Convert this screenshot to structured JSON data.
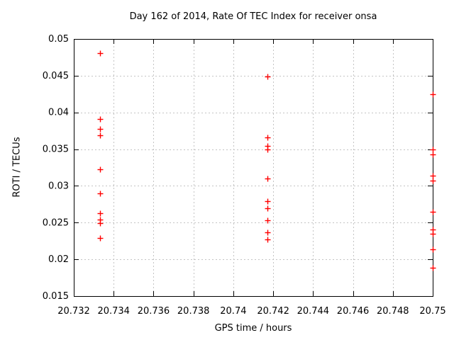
{
  "chart_data": {
    "type": "scatter",
    "title": "Day 162 of 2014, Rate Of TEC Index for receiver onsa",
    "xlabel": "GPS time / hours",
    "ylabel": "ROTI / TECUs",
    "xlim": [
      20.732,
      20.75
    ],
    "ylim": [
      0.015,
      0.05
    ],
    "xticks": [
      20.732,
      20.734,
      20.736,
      20.738,
      20.74,
      20.742,
      20.744,
      20.746,
      20.748,
      20.75
    ],
    "xtick_labels": [
      "20.732",
      "20.734",
      "20.736",
      "20.738",
      "20.74",
      "20.742",
      "20.744",
      "20.746",
      "20.748",
      "20.75"
    ],
    "yticks": [
      0.015,
      0.02,
      0.025,
      0.03,
      0.035,
      0.04,
      0.045,
      0.05
    ],
    "ytick_labels": [
      "0.015",
      "0.02",
      "0.025",
      "0.03",
      "0.035",
      "0.04",
      "0.045",
      "0.05"
    ],
    "grid": true,
    "legend_position": "none",
    "marker": "plus",
    "colors": {
      "marker": "#ff0000",
      "grid": "#c4c4c4",
      "axis": "#000000",
      "text": "#000000",
      "background": "#ffffff"
    },
    "series": [
      {
        "name": "ROTI",
        "points": [
          [
            20.7333,
            0.0481
          ],
          [
            20.7333,
            0.0391
          ],
          [
            20.7333,
            0.0378
          ],
          [
            20.7333,
            0.0369
          ],
          [
            20.7333,
            0.0323
          ],
          [
            20.7333,
            0.029
          ],
          [
            20.7333,
            0.0263
          ],
          [
            20.7333,
            0.0254
          ],
          [
            20.7333,
            0.0249
          ],
          [
            20.7333,
            0.0229
          ],
          [
            20.7417,
            0.0449
          ],
          [
            20.7417,
            0.0366
          ],
          [
            20.7417,
            0.0354
          ],
          [
            20.7417,
            0.035
          ],
          [
            20.7417,
            0.031
          ],
          [
            20.7417,
            0.0279
          ],
          [
            20.7417,
            0.027
          ],
          [
            20.7417,
            0.0253
          ],
          [
            20.7417,
            0.0237
          ],
          [
            20.7417,
            0.0227
          ],
          [
            20.75,
            0.0425
          ],
          [
            20.75,
            0.035
          ],
          [
            20.75,
            0.0343
          ],
          [
            20.75,
            0.0314
          ],
          [
            20.75,
            0.0307
          ],
          [
            20.75,
            0.0265
          ],
          [
            20.75,
            0.0241
          ],
          [
            20.75,
            0.0235
          ],
          [
            20.75,
            0.0214
          ],
          [
            20.75,
            0.0189
          ]
        ]
      }
    ]
  }
}
